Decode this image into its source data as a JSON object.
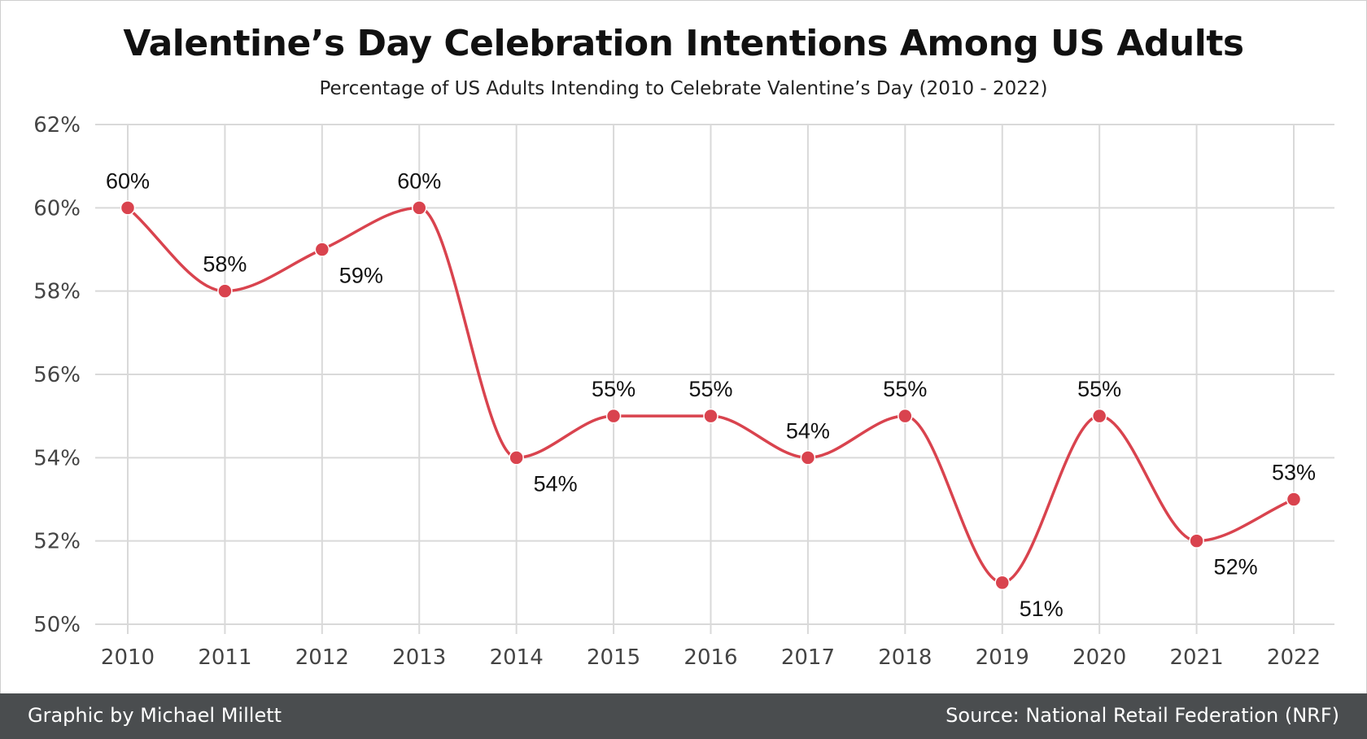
{
  "header": {
    "title": "Valentine’s Day Celebration Intentions Among US Adults",
    "subtitle": "Percentage of US Adults Intending to Celebrate Valentine’s Day (2010 - 2022)"
  },
  "footer": {
    "credit": "Graphic by Michael Millett",
    "source": "Source: National Retail Federation (NRF)"
  },
  "chart_data": {
    "type": "line",
    "x": [
      2010,
      2011,
      2012,
      2013,
      2014,
      2015,
      2016,
      2017,
      2018,
      2019,
      2020,
      2021,
      2022
    ],
    "series": [
      {
        "values": [
          60,
          58,
          59,
          60,
          54,
          55,
          55,
          54,
          55,
          51,
          55,
          52,
          53
        ]
      }
    ],
    "data_labels": [
      "60%",
      "58%",
      "59%",
      "60%",
      "54%",
      "55%",
      "55%",
      "54%",
      "55%",
      "51%",
      "55%",
      "52%",
      "53%"
    ],
    "label_side": [
      "above",
      "above",
      "below",
      "above",
      "below",
      "above",
      "above",
      "above",
      "above",
      "below",
      "above",
      "below",
      "above"
    ],
    "ylim": [
      50,
      62
    ],
    "yticks": [
      50,
      52,
      54,
      56,
      58,
      60,
      62
    ],
    "ytick_labels": [
      "50%",
      "52%",
      "54%",
      "56%",
      "58%",
      "60%",
      "62%"
    ],
    "xtick_labels": [
      "2010",
      "2011",
      "2012",
      "2013",
      "2014",
      "2015",
      "2016",
      "2017",
      "2018",
      "2019",
      "2020",
      "2021",
      "2022"
    ],
    "line_style": "smooth",
    "grid": true,
    "colors": {
      "line": "#d9434e",
      "grid": "#d9d9d9",
      "axis_text": "#444444",
      "label_text": "#111111"
    }
  }
}
